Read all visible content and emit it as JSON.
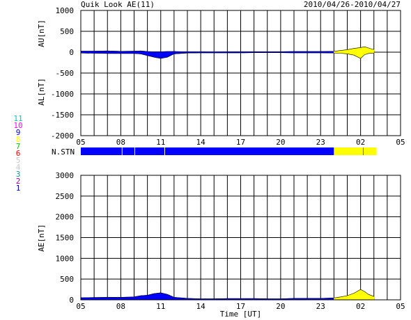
{
  "header": {
    "title": "Quik Look AE(11)",
    "date_range": "2010/04/26-2010/04/27"
  },
  "nstn_label": "N.STN",
  "station_numbers": [
    {
      "label": "11",
      "color": "#00c8c8"
    },
    {
      "label": "10",
      "color": "#ff00ff"
    },
    {
      "label": "9",
      "color": "#0000ff"
    },
    {
      "label": "8",
      "color": "#ffff00"
    },
    {
      "label": "7",
      "color": "#00c800"
    },
    {
      "label": "6",
      "color": "#ff0000"
    },
    {
      "label": "5",
      "color": "#c8c8c8"
    },
    {
      "label": "4",
      "color": "#c8c8c8"
    },
    {
      "label": "3",
      "color": "#00a0a0"
    },
    {
      "label": "2",
      "color": "#a000a0"
    },
    {
      "label": "1",
      "color": "#0000c8"
    }
  ],
  "colors": {
    "blue": "#0000ff",
    "yellow": "#ffff00",
    "green": "#00aa00"
  },
  "chart_data": [
    {
      "id": "au_al",
      "type": "area",
      "ylabel_top": "AU[nT]",
      "ylabel_bottom": "AL[nT]",
      "xlabel": "",
      "ylim": [
        -2000,
        1000
      ],
      "yticks": [
        "1000",
        "500",
        "0",
        "-500",
        "-1000",
        "-1500",
        "-2000"
      ],
      "yticks_values": [
        1000,
        500,
        0,
        -500,
        -1000,
        -1500,
        -2000
      ],
      "xlim_hours": [
        5,
        29
      ],
      "xticks": [
        "05",
        "08",
        "11",
        "14",
        "17",
        "20",
        "23",
        "02",
        "05"
      ],
      "xticks_values": [
        5,
        8,
        11,
        14,
        17,
        20,
        23,
        26,
        29
      ],
      "grid": true,
      "series": [
        {
          "color_key": "blue",
          "x": [
            5.0,
            6.0,
            7.0,
            8.0,
            9.0,
            9.5,
            10.0,
            10.5,
            11.0,
            11.5,
            12.0,
            13.0,
            14.0,
            15.0,
            16.0,
            17.0,
            18.0,
            19.0,
            20.0,
            21.0,
            22.0,
            23.0,
            24.0
          ],
          "au": [
            25,
            25,
            30,
            20,
            25,
            30,
            15,
            10,
            10,
            15,
            15,
            10,
            10,
            8,
            10,
            12,
            12,
            10,
            12,
            15,
            15,
            15,
            20
          ],
          "al": [
            -20,
            -25,
            -30,
            -30,
            -30,
            -40,
            -80,
            -120,
            -150,
            -120,
            -40,
            -20,
            -15,
            -15,
            -15,
            -15,
            -12,
            -12,
            -12,
            -15,
            -15,
            -15,
            -20
          ]
        },
        {
          "color_key": "yellow",
          "x": [
            24.0,
            24.5,
            25.0,
            25.5,
            26.0,
            26.3,
            26.6,
            27.0
          ],
          "au": [
            20,
            40,
            60,
            90,
            110,
            130,
            100,
            60
          ],
          "al": [
            -20,
            -25,
            -40,
            -70,
            -150,
            -60,
            -30,
            -20
          ]
        }
      ]
    },
    {
      "id": "ae",
      "type": "area",
      "ylabel": "AE[nT]",
      "xlabel": "Time [UT]",
      "ylim": [
        0,
        3000
      ],
      "yticks": [
        "3000",
        "2500",
        "2000",
        "1500",
        "1000",
        "500",
        "0"
      ],
      "yticks_values": [
        3000,
        2500,
        2000,
        1500,
        1000,
        500,
        0
      ],
      "xlim_hours": [
        5,
        29
      ],
      "xticks": [
        "05",
        "08",
        "11",
        "14",
        "17",
        "20",
        "23",
        "02",
        "05"
      ],
      "xticks_values": [
        5,
        8,
        11,
        14,
        17,
        20,
        23,
        26,
        29
      ],
      "grid": true,
      "series": [
        {
          "color_key": "blue",
          "x": [
            5.0,
            6.0,
            7.0,
            8.0,
            9.0,
            9.5,
            10.0,
            10.5,
            11.0,
            11.5,
            12.0,
            13.0,
            14.0,
            15.0,
            16.0,
            17.0,
            18.0,
            19.0,
            20.0,
            21.0,
            22.0,
            23.0,
            24.0
          ],
          "values": [
            50,
            55,
            60,
            60,
            70,
            100,
            110,
            150,
            170,
            130,
            60,
            35,
            25,
            25,
            30,
            30,
            30,
            25,
            25,
            35,
            35,
            35,
            45
          ]
        },
        {
          "color_key": "yellow",
          "x": [
            24.0,
            24.5,
            25.0,
            25.5,
            26.0,
            26.3,
            26.6,
            27.0
          ],
          "values": [
            45,
            70,
            100,
            160,
            250,
            200,
            130,
            80
          ]
        }
      ]
    }
  ],
  "station_bar": {
    "segments": [
      {
        "start": 5.0,
        "end": 24.0,
        "color_key": "blue"
      },
      {
        "start": 24.0,
        "end": 27.2,
        "color_key": "yellow"
      }
    ],
    "ticks": [
      {
        "at": 8.1,
        "color_key": "blue"
      },
      {
        "at": 9.05,
        "color_key": "blue"
      },
      {
        "at": 11.3,
        "color_key": "blue"
      },
      {
        "at": 26.2,
        "color_key": "green"
      }
    ]
  }
}
